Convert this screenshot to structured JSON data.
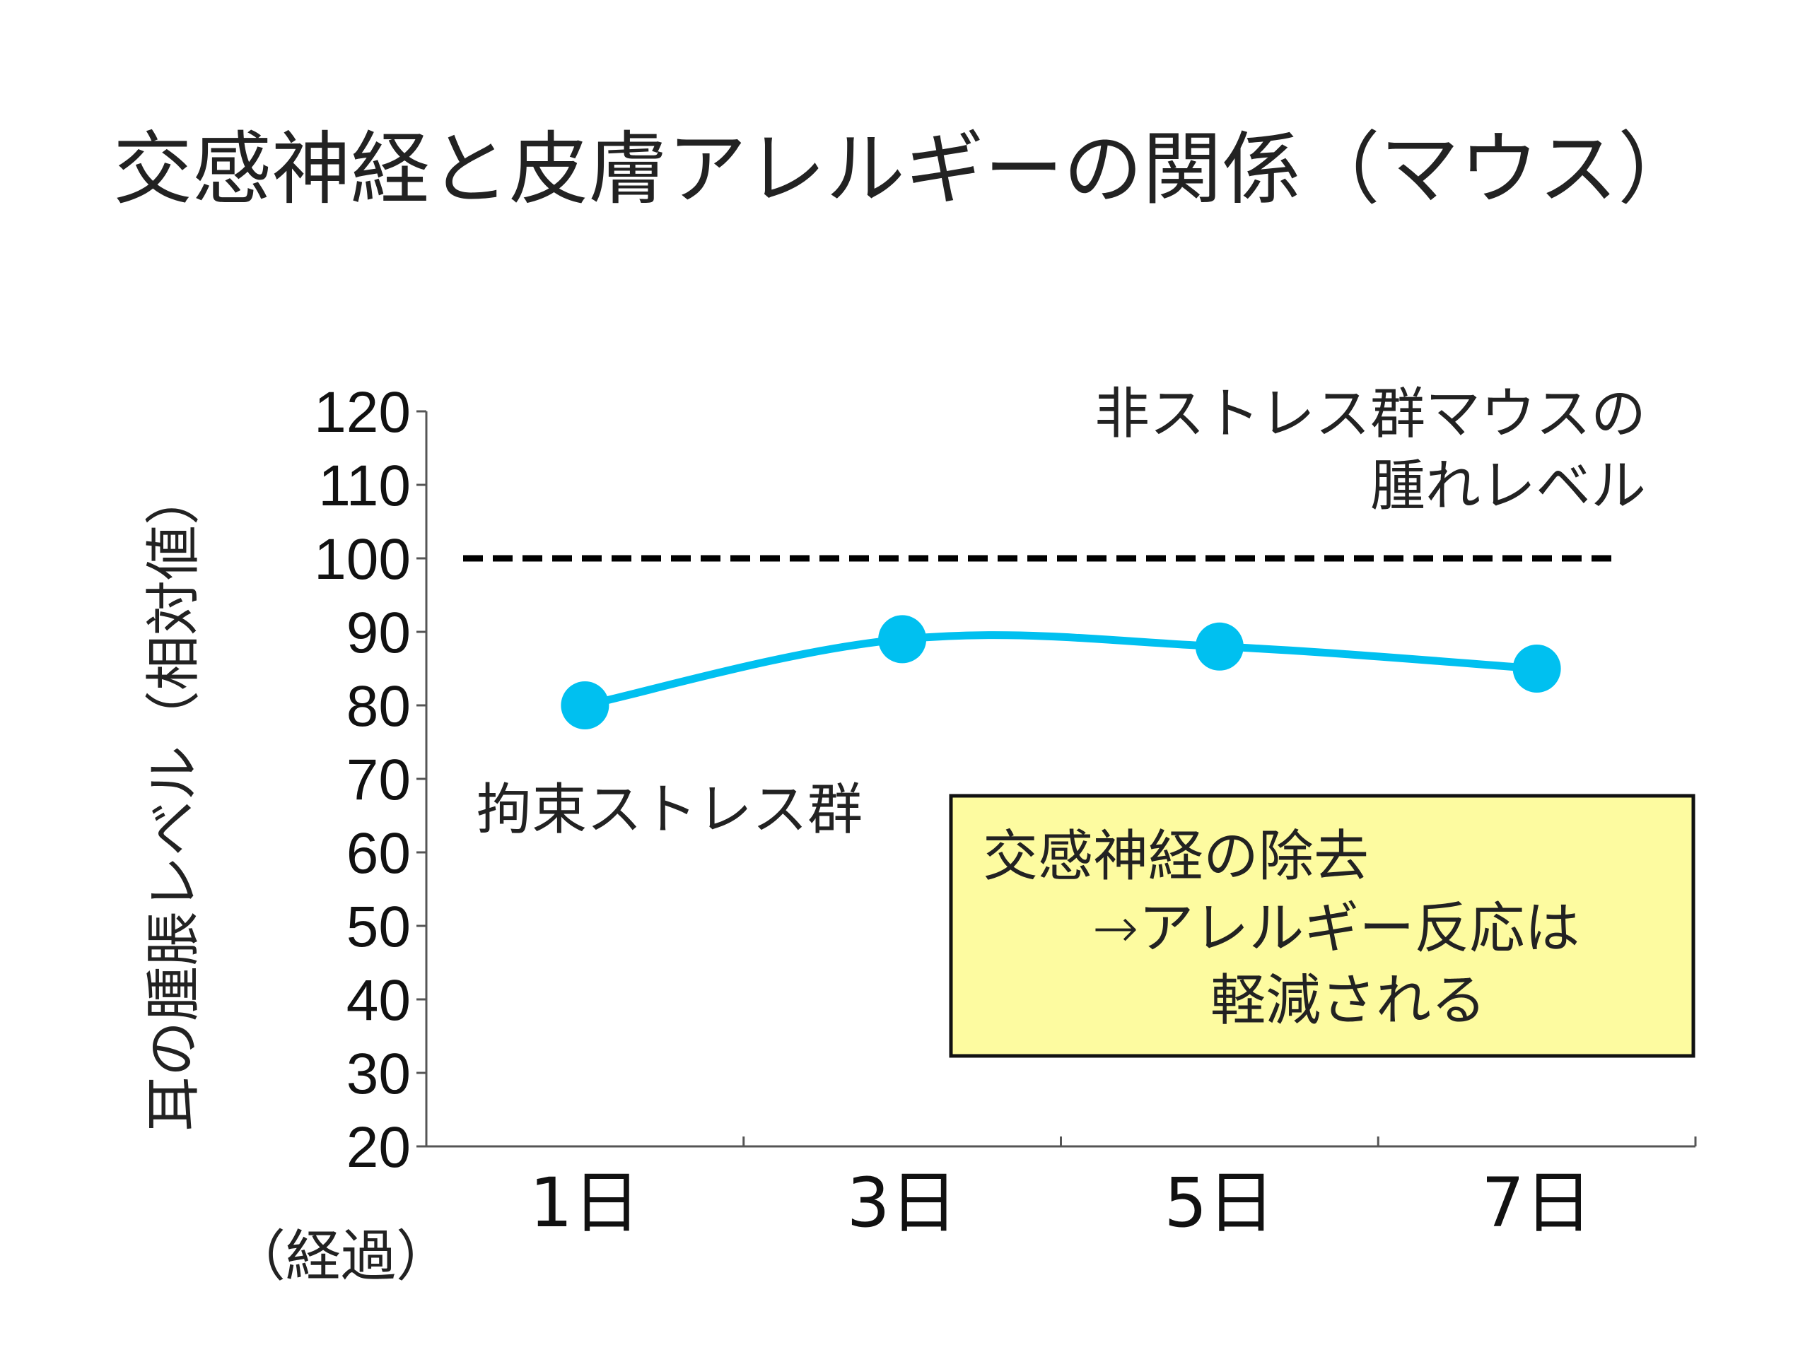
{
  "title": "交感神経と皮膚アレルギーの関係（マウス）",
  "chart_data": {
    "type": "line",
    "ylabel": "耳の腫脹レベル（相対値）",
    "xlabel": "（経過）",
    "categories": [
      "1日",
      "3日",
      "5日",
      "7日"
    ],
    "ylim": [
      20,
      120
    ],
    "yticks": [
      120,
      110,
      100,
      90,
      80,
      70,
      60,
      50,
      40,
      30,
      20
    ],
    "series": [
      {
        "name": "拘束ストレス群",
        "values": [
          80,
          89,
          88,
          85
        ],
        "color": "#00c0f0"
      }
    ],
    "reference_line": {
      "value": 100,
      "style": "dashed",
      "color": "#000000"
    },
    "annotations": {
      "reference_label_line1": "非ストレス群マウスの",
      "reference_label_line2": "腫れレベル"
    },
    "callout": {
      "line1": "交感神経の除去",
      "line2": "→アレルギー反応は",
      "line3": "軽減される",
      "background": "#fdfba0",
      "border": "#111111"
    }
  }
}
